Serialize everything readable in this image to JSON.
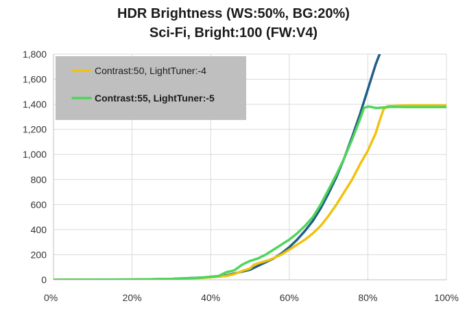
{
  "chart_data": {
    "type": "line",
    "title": "HDR Brightness (WS:50%, BG:20%)",
    "subtitle": "Sci-Fi, Bright:100 (FW:V4)",
    "xlabel": "",
    "ylabel": "",
    "xlim": [
      0,
      100
    ],
    "ylim": [
      0,
      1800
    ],
    "x_ticks": [
      "0%",
      "20%",
      "40%",
      "60%",
      "80%",
      "100%"
    ],
    "y_ticks": [
      "0",
      "200",
      "400",
      "600",
      "800",
      "1,000",
      "1,200",
      "1,400",
      "1,600",
      "1,800"
    ],
    "grid": true,
    "legend_position": "top-left",
    "series": [
      {
        "name": "Contrast:50, LightTuner:-4",
        "color": "#f0c20e",
        "bold": false,
        "points": [
          [
            0,
            0
          ],
          [
            20,
            2
          ],
          [
            30,
            6
          ],
          [
            38,
            15
          ],
          [
            44,
            30
          ],
          [
            46,
            45
          ],
          [
            48,
            70
          ],
          [
            50,
            90
          ],
          [
            51,
            120
          ],
          [
            53,
            140
          ],
          [
            55,
            160
          ],
          [
            58,
            200
          ],
          [
            60,
            240
          ],
          [
            62,
            280
          ],
          [
            64,
            320
          ],
          [
            66,
            370
          ],
          [
            68,
            430
          ],
          [
            70,
            510
          ],
          [
            72,
            600
          ],
          [
            74,
            700
          ],
          [
            76,
            800
          ],
          [
            78,
            920
          ],
          [
            80,
            1030
          ],
          [
            82,
            1170
          ],
          [
            83,
            1270
          ],
          [
            84,
            1360
          ],
          [
            85,
            1385
          ],
          [
            90,
            1392
          ],
          [
            100,
            1392
          ]
        ]
      },
      {
        "name": "Contrast:55, LightTuner:-5",
        "color": "#4fd45a",
        "bold": true,
        "points": [
          [
            0,
            0
          ],
          [
            20,
            2
          ],
          [
            30,
            6
          ],
          [
            38,
            18
          ],
          [
            42,
            30
          ],
          [
            44,
            60
          ],
          [
            46,
            75
          ],
          [
            48,
            120
          ],
          [
            50,
            150
          ],
          [
            52,
            170
          ],
          [
            54,
            200
          ],
          [
            56,
            240
          ],
          [
            58,
            280
          ],
          [
            60,
            320
          ],
          [
            62,
            370
          ],
          [
            64,
            430
          ],
          [
            66,
            500
          ],
          [
            68,
            600
          ],
          [
            70,
            720
          ],
          [
            72,
            840
          ],
          [
            74,
            970
          ],
          [
            76,
            1120
          ],
          [
            78,
            1280
          ],
          [
            79,
            1370
          ],
          [
            80,
            1382
          ],
          [
            81,
            1378
          ],
          [
            82,
            1370
          ],
          [
            84,
            1375
          ],
          [
            86,
            1380
          ],
          [
            90,
            1378
          ],
          [
            100,
            1378
          ]
        ]
      },
      {
        "color": "#1f5f86",
        "bold": false,
        "points": [
          [
            0,
            0
          ],
          [
            20,
            2
          ],
          [
            30,
            7
          ],
          [
            38,
            18
          ],
          [
            44,
            35
          ],
          [
            50,
            80
          ],
          [
            54,
            140
          ],
          [
            56,
            170
          ],
          [
            58,
            210
          ],
          [
            60,
            260
          ],
          [
            62,
            320
          ],
          [
            64,
            390
          ],
          [
            66,
            470
          ],
          [
            68,
            570
          ],
          [
            70,
            690
          ],
          [
            72,
            820
          ],
          [
            74,
            970
          ],
          [
            76,
            1140
          ],
          [
            78,
            1320
          ],
          [
            80,
            1520
          ],
          [
            82,
            1720
          ],
          [
            83,
            1800
          ]
        ]
      }
    ]
  }
}
